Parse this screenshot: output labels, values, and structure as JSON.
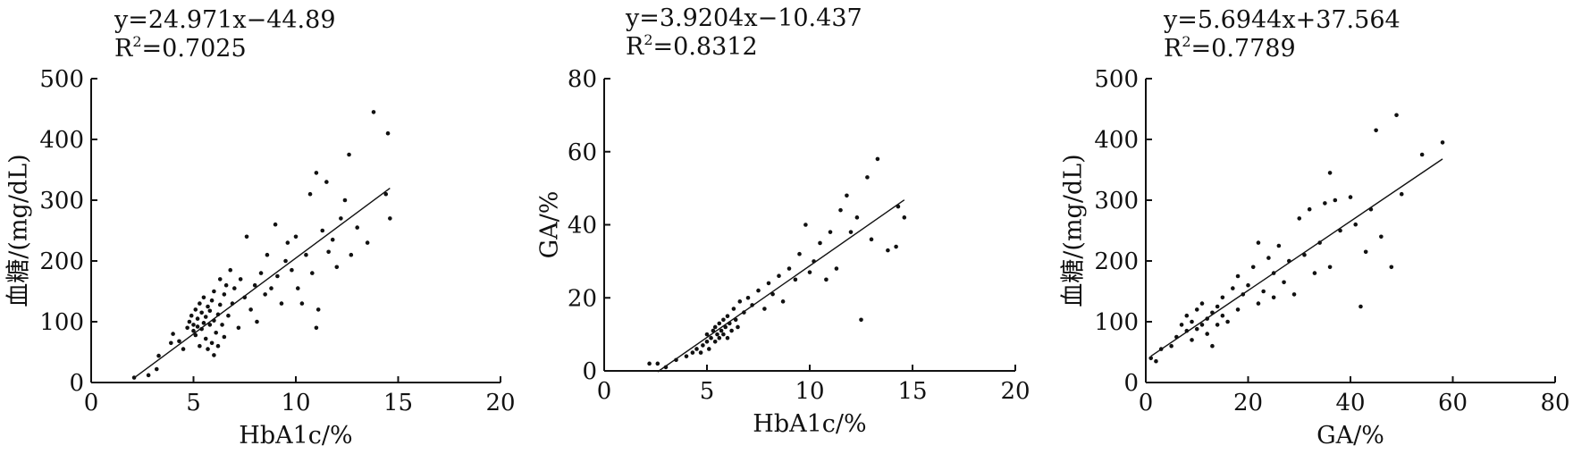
{
  "chart_data": [
    {
      "type": "scatter",
      "equation": "y=24.971x−44.89",
      "r2_prefix": "R",
      "r2_exp": "2",
      "r2_value": "=0.7025",
      "xlabel": "HbA1c/%",
      "ylabel": "血糖/(mg/dL)",
      "xlim": [
        0,
        20
      ],
      "ylim": [
        0,
        500
      ],
      "xticks": [
        "0",
        "5",
        "10",
        "15",
        "20"
      ],
      "yticks": [
        "0",
        "100",
        "200",
        "300",
        "400",
        "500"
      ],
      "fit": {
        "slope": 24.971,
        "intercept": -44.89,
        "x_range": [
          2.1,
          14.6
        ]
      },
      "grid": false,
      "legend": "none",
      "points": [
        [
          2.1,
          8
        ],
        [
          2.8,
          12
        ],
        [
          3.2,
          22
        ],
        [
          3.3,
          44
        ],
        [
          3.9,
          65
        ],
        [
          4.0,
          80
        ],
        [
          4.3,
          68
        ],
        [
          4.5,
          55
        ],
        [
          4.7,
          90
        ],
        [
          4.8,
          100
        ],
        [
          4.9,
          110
        ],
        [
          5.0,
          85
        ],
        [
          5.0,
          95
        ],
        [
          5.1,
          120
        ],
        [
          5.1,
          78
        ],
        [
          5.2,
          105
        ],
        [
          5.2,
          92
        ],
        [
          5.3,
          130
        ],
        [
          5.3,
          60
        ],
        [
          5.4,
          115
        ],
        [
          5.4,
          88
        ],
        [
          5.5,
          98
        ],
        [
          5.5,
          140
        ],
        [
          5.6,
          72
        ],
        [
          5.6,
          108
        ],
        [
          5.7,
          125
        ],
        [
          5.7,
          55
        ],
        [
          5.8,
          95
        ],
        [
          5.8,
          118
        ],
        [
          5.9,
          65
        ],
        [
          5.9,
          135
        ],
        [
          6.0,
          45
        ],
        [
          6.0,
          102
        ],
        [
          6.0,
          150
        ],
        [
          6.1,
          82
        ],
        [
          6.2,
          112
        ],
        [
          6.2,
          60
        ],
        [
          6.3,
          170
        ],
        [
          6.3,
          128
        ],
        [
          6.4,
          95
        ],
        [
          6.5,
          145
        ],
        [
          6.5,
          75
        ],
        [
          6.6,
          160
        ],
        [
          6.7,
          110
        ],
        [
          6.8,
          185
        ],
        [
          6.9,
          130
        ],
        [
          7.0,
          155
        ],
        [
          7.2,
          90
        ],
        [
          7.3,
          170
        ],
        [
          7.5,
          140
        ],
        [
          7.6,
          240
        ],
        [
          7.8,
          120
        ],
        [
          8.0,
          160
        ],
        [
          8.1,
          100
        ],
        [
          8.3,
          180
        ],
        [
          8.5,
          145
        ],
        [
          8.6,
          210
        ],
        [
          8.8,
          155
        ],
        [
          9.0,
          260
        ],
        [
          9.1,
          175
        ],
        [
          9.3,
          130
        ],
        [
          9.5,
          200
        ],
        [
          9.6,
          230
        ],
        [
          9.8,
          185
        ],
        [
          10.0,
          240
        ],
        [
          10.1,
          155
        ],
        [
          10.3,
          130
        ],
        [
          10.5,
          210
        ],
        [
          10.7,
          310
        ],
        [
          10.8,
          180
        ],
        [
          11.0,
          345
        ],
        [
          11.0,
          90
        ],
        [
          11.1,
          120
        ],
        [
          11.3,
          250
        ],
        [
          11.5,
          330
        ],
        [
          11.6,
          215
        ],
        [
          11.8,
          235
        ],
        [
          12.0,
          190
        ],
        [
          12.2,
          270
        ],
        [
          12.4,
          300
        ],
        [
          12.6,
          375
        ],
        [
          12.7,
          210
        ],
        [
          13.0,
          255
        ],
        [
          13.5,
          230
        ],
        [
          13.8,
          445
        ],
        [
          14.5,
          410
        ],
        [
          14.6,
          270
        ],
        [
          14.4,
          310
        ]
      ]
    },
    {
      "type": "scatter",
      "equation": "y=3.9204x−10.437",
      "r2_prefix": "R",
      "r2_exp": "2",
      "r2_value": "=0.8312",
      "xlabel": "HbA1c/%",
      "ylabel": "GA/%",
      "xlim": [
        0,
        20
      ],
      "ylim": [
        0,
        80
      ],
      "xticks": [
        "0",
        "5",
        "10",
        "15",
        "20"
      ],
      "yticks": [
        "0",
        "20",
        "40",
        "60",
        "80"
      ],
      "fit": {
        "slope": 3.9204,
        "intercept": -10.437,
        "x_range": [
          2.6,
          14.6
        ]
      },
      "grid": false,
      "legend": "none",
      "points": [
        [
          2.2,
          2
        ],
        [
          2.6,
          2
        ],
        [
          3.0,
          1
        ],
        [
          3.5,
          3
        ],
        [
          4.0,
          4
        ],
        [
          4.3,
          5
        ],
        [
          4.5,
          6
        ],
        [
          4.7,
          5
        ],
        [
          4.8,
          7
        ],
        [
          5.0,
          8
        ],
        [
          5.0,
          10
        ],
        [
          5.1,
          6
        ],
        [
          5.2,
          9
        ],
        [
          5.3,
          11
        ],
        [
          5.4,
          8
        ],
        [
          5.4,
          12
        ],
        [
          5.5,
          10
        ],
        [
          5.6,
          13
        ],
        [
          5.6,
          9
        ],
        [
          5.7,
          11
        ],
        [
          5.8,
          14
        ],
        [
          5.8,
          10
        ],
        [
          5.9,
          12
        ],
        [
          6.0,
          15
        ],
        [
          6.0,
          9
        ],
        [
          6.1,
          13
        ],
        [
          6.2,
          11
        ],
        [
          6.3,
          17
        ],
        [
          6.4,
          14
        ],
        [
          6.5,
          12
        ],
        [
          6.6,
          19
        ],
        [
          6.8,
          16
        ],
        [
          7.0,
          20
        ],
        [
          7.2,
          18
        ],
        [
          7.5,
          22
        ],
        [
          7.8,
          17
        ],
        [
          8.0,
          24
        ],
        [
          8.2,
          21
        ],
        [
          8.5,
          26
        ],
        [
          8.7,
          19
        ],
        [
          9.0,
          28
        ],
        [
          9.3,
          25
        ],
        [
          9.5,
          32
        ],
        [
          9.8,
          40
        ],
        [
          10.0,
          27
        ],
        [
          10.2,
          30
        ],
        [
          10.5,
          35
        ],
        [
          10.8,
          25
        ],
        [
          11.0,
          38
        ],
        [
          11.3,
          28
        ],
        [
          11.5,
          44
        ],
        [
          11.8,
          48
        ],
        [
          12.0,
          38
        ],
        [
          12.3,
          42
        ],
        [
          12.5,
          14
        ],
        [
          12.8,
          53
        ],
        [
          13.0,
          36
        ],
        [
          13.3,
          58
        ],
        [
          13.8,
          33
        ],
        [
          14.3,
          45
        ],
        [
          14.6,
          42
        ],
        [
          14.2,
          34
        ]
      ]
    },
    {
      "type": "scatter",
      "equation": "y=5.6944x+37.564",
      "r2_prefix": "R",
      "r2_exp": "2",
      "r2_value": "=0.7789",
      "xlabel": "GA/%",
      "ylabel": "血糖/(mg/dL)",
      "xlim": [
        0,
        80
      ],
      "ylim": [
        0,
        500
      ],
      "xticks": [
        "0",
        "20",
        "40",
        "60",
        "80"
      ],
      "yticks": [
        "0",
        "100",
        "200",
        "300",
        "400",
        "500"
      ],
      "fit": {
        "slope": 5.6944,
        "intercept": 37.564,
        "x_range": [
          1,
          58
        ]
      },
      "grid": false,
      "legend": "none",
      "points": [
        [
          1,
          40
        ],
        [
          2,
          35
        ],
        [
          3,
          55
        ],
        [
          5,
          60
        ],
        [
          6,
          75
        ],
        [
          7,
          95
        ],
        [
          8,
          85
        ],
        [
          8,
          110
        ],
        [
          9,
          70
        ],
        [
          9,
          100
        ],
        [
          10,
          120
        ],
        [
          10,
          88
        ],
        [
          11,
          95
        ],
        [
          11,
          130
        ],
        [
          12,
          105
        ],
        [
          12,
          80
        ],
        [
          13,
          115
        ],
        [
          13,
          60
        ],
        [
          14,
          125
        ],
        [
          14,
          95
        ],
        [
          15,
          140
        ],
        [
          15,
          110
        ],
        [
          16,
          100
        ],
        [
          17,
          155
        ],
        [
          18,
          120
        ],
        [
          18,
          175
        ],
        [
          19,
          145
        ],
        [
          20,
          160
        ],
        [
          21,
          190
        ],
        [
          22,
          130
        ],
        [
          22,
          230
        ],
        [
          23,
          150
        ],
        [
          24,
          205
        ],
        [
          25,
          180
        ],
        [
          25,
          140
        ],
        [
          26,
          225
        ],
        [
          27,
          165
        ],
        [
          28,
          200
        ],
        [
          29,
          145
        ],
        [
          30,
          270
        ],
        [
          31,
          210
        ],
        [
          32,
          285
        ],
        [
          33,
          180
        ],
        [
          34,
          230
        ],
        [
          35,
          295
        ],
        [
          36,
          345
        ],
        [
          36,
          190
        ],
        [
          37,
          300
        ],
        [
          38,
          250
        ],
        [
          40,
          305
        ],
        [
          41,
          260
        ],
        [
          42,
          125
        ],
        [
          43,
          215
        ],
        [
          44,
          285
        ],
        [
          45,
          415
        ],
        [
          46,
          240
        ],
        [
          48,
          190
        ],
        [
          49,
          440
        ],
        [
          50,
          310
        ],
        [
          54,
          375
        ],
        [
          58,
          395
        ]
      ]
    }
  ]
}
